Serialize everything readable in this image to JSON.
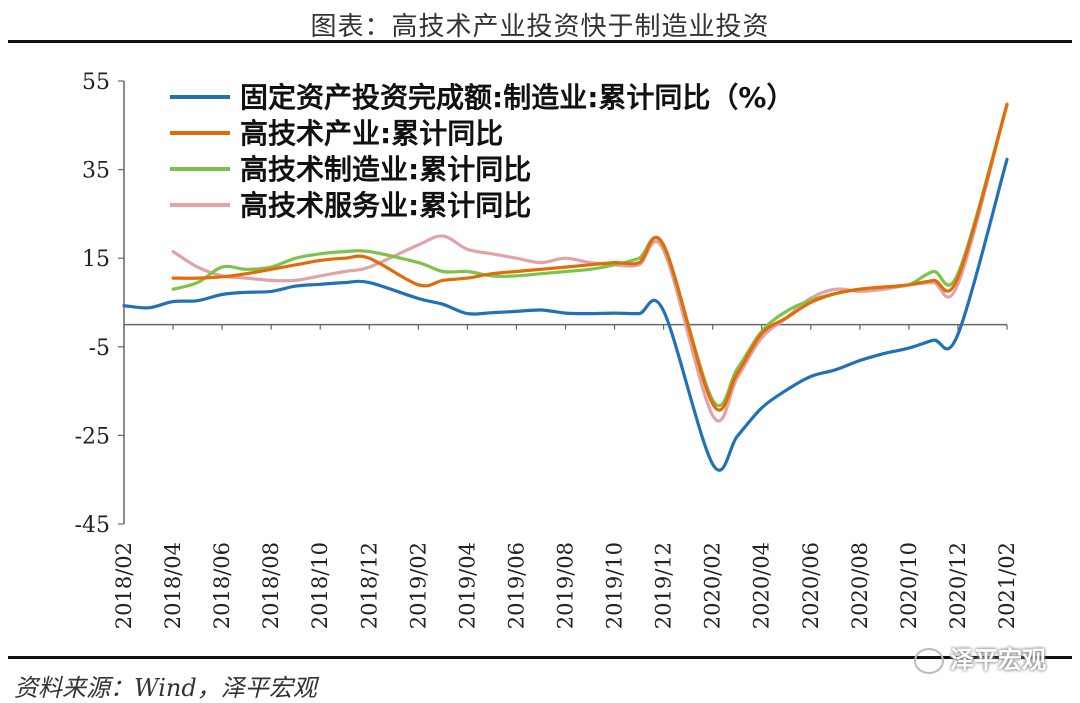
{
  "header": {
    "title": "图表：高技术产业投资快于制造业投资"
  },
  "footer": {
    "source": "资料来源：Wind，泽平宏观",
    "watermark": "泽平宏观"
  },
  "chart_data": {
    "type": "line",
    "ylim": [
      -45,
      55
    ],
    "yticks": [
      55,
      35,
      15,
      -5,
      -25,
      -45
    ],
    "legend_position": "top-left",
    "grid": false,
    "xtick_labels": [
      "2018/02",
      "2018/04",
      "2018/06",
      "2018/08",
      "2018/10",
      "2018/12",
      "2019/02",
      "2019/04",
      "2019/06",
      "2019/08",
      "2019/10",
      "2019/12",
      "2020/02",
      "2020/04",
      "2020/06",
      "2020/08",
      "2020/10",
      "2020/12",
      "2021/02"
    ],
    "x": [
      "2018/02",
      "2018/03",
      "2018/04",
      "2018/05",
      "2018/06",
      "2018/07",
      "2018/08",
      "2018/09",
      "2018/10",
      "2018/11",
      "2018/12",
      "2019/01",
      "2019/02",
      "2019/03",
      "2019/04",
      "2019/05",
      "2019/06",
      "2019/07",
      "2019/08",
      "2019/09",
      "2019/10",
      "2019/11",
      "2019/12",
      "2020/01",
      "2020/02",
      "2020/03",
      "2020/04",
      "2020/05",
      "2020/06",
      "2020/07",
      "2020/08",
      "2020/09",
      "2020/10",
      "2020/11",
      "2020/12",
      "2021/01",
      "2021/02"
    ],
    "series": [
      {
        "name": "固定资产投资完成额:制造业:累计同比（%）",
        "color": "#2171b5",
        "values": [
          4.3,
          3.8,
          5.2,
          5.4,
          6.8,
          7.3,
          7.5,
          8.7,
          9.1,
          9.5,
          9.5,
          null,
          5.9,
          4.6,
          2.5,
          2.7,
          3.0,
          3.3,
          2.6,
          2.5,
          2.6,
          2.5,
          3.1,
          null,
          -31.5,
          -25.2,
          -18.8,
          -14.8,
          -11.7,
          -10.2,
          -8.1,
          -6.5,
          -5.3,
          -3.5,
          -2.2,
          null,
          37.3
        ]
      },
      {
        "name": "高技术产业:累计同比",
        "color": "#e36c0a",
        "values": [
          null,
          null,
          10.5,
          10.5,
          10.8,
          11.5,
          12.5,
          13.5,
          14.5,
          15.0,
          15.0,
          null,
          9.0,
          10.0,
          10.5,
          11.5,
          12.0,
          12.5,
          13.0,
          13.5,
          14.0,
          14.0,
          18.0,
          null,
          -17.9,
          -11.0,
          -2.0,
          1.5,
          5.0,
          7.0,
          8.0,
          8.5,
          9.0,
          10.0,
          10.6,
          null,
          49.7
        ]
      },
      {
        "name": "高技术制造业:累计同比",
        "color": "#7dc34a",
        "values": [
          null,
          null,
          8.0,
          9.5,
          13.0,
          12.5,
          13.0,
          15.0,
          16.0,
          16.5,
          16.5,
          null,
          14.0,
          12.0,
          12.0,
          11.0,
          11.0,
          11.5,
          12.0,
          12.5,
          13.5,
          15.0,
          17.7,
          null,
          -17.0,
          -10.0,
          -1.5,
          3.0,
          5.5,
          7.0,
          8.0,
          8.5,
          9.0,
          12.0,
          11.5,
          null,
          49.6
        ]
      },
      {
        "name": "高技术服务业:累计同比",
        "color": "#e0a3a8",
        "values": [
          null,
          null,
          16.5,
          13.0,
          11.0,
          10.5,
          10.0,
          10.0,
          11.0,
          12.0,
          13.0,
          null,
          18.0,
          20.0,
          17.0,
          16.0,
          15.0,
          14.0,
          15.0,
          14.0,
          13.5,
          13.5,
          16.8,
          null,
          -20.5,
          -12.0,
          -3.0,
          1.5,
          6.0,
          8.0,
          7.5,
          8.0,
          9.0,
          9.5,
          9.1,
          null,
          49.8
        ]
      }
    ]
  }
}
